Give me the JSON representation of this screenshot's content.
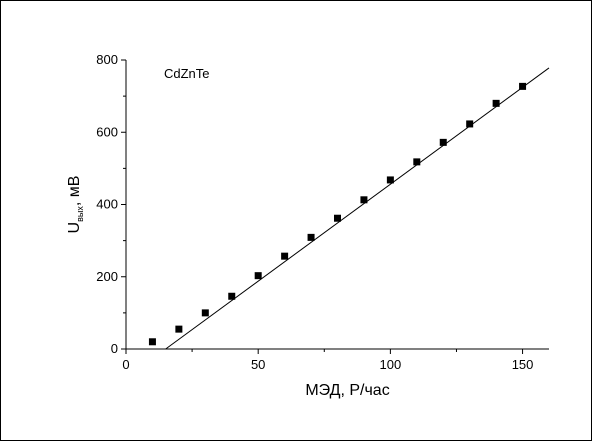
{
  "chart_data": {
    "type": "scatter",
    "annotation": "CdZnTe",
    "xlabel": "МЭД, Р/час",
    "ylabel": {
      "main": "U",
      "subscript": "вых",
      "suffix": ", мВ"
    },
    "xlim": [
      0,
      160
    ],
    "ylim": [
      0,
      800
    ],
    "x_ticks": [
      0,
      50,
      100,
      150
    ],
    "y_ticks": [
      0,
      200,
      400,
      600,
      800
    ],
    "grid": false,
    "series": [
      {
        "marker": "square",
        "color": "#000000",
        "points": [
          {
            "x": 10,
            "y": 20
          },
          {
            "x": 20,
            "y": 55
          },
          {
            "x": 30,
            "y": 100
          },
          {
            "x": 40,
            "y": 146
          },
          {
            "x": 50,
            "y": 203
          },
          {
            "x": 60,
            "y": 257
          },
          {
            "x": 70,
            "y": 309
          },
          {
            "x": 80,
            "y": 362
          },
          {
            "x": 90,
            "y": 413
          },
          {
            "x": 100,
            "y": 468
          },
          {
            "x": 110,
            "y": 518
          },
          {
            "x": 120,
            "y": 572
          },
          {
            "x": 130,
            "y": 623
          },
          {
            "x": 140,
            "y": 680
          },
          {
            "x": 150,
            "y": 727
          }
        ]
      }
    ],
    "fit_line": {
      "x": [
        15,
        160
      ],
      "y": [
        0,
        778
      ]
    }
  }
}
